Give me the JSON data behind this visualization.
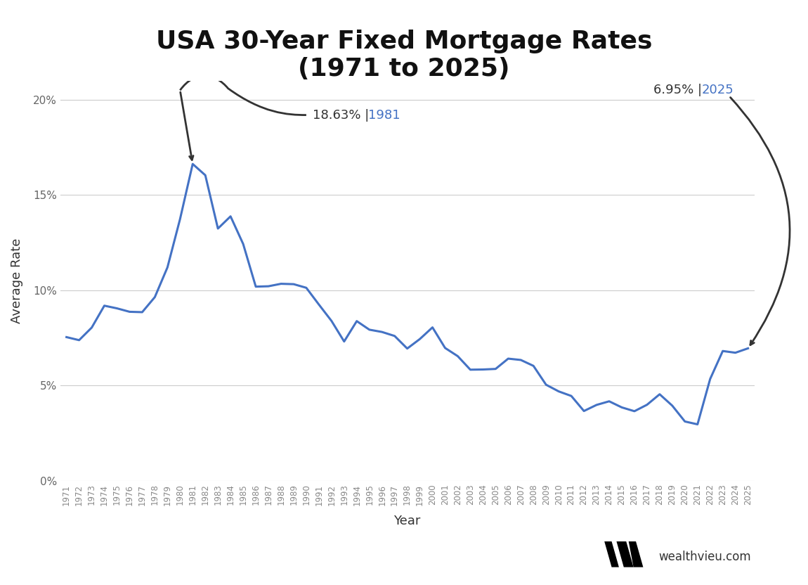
{
  "title": "USA 30-Year Fixed Mortgage Rates\n(1971 to 2025)",
  "xlabel": "Year",
  "ylabel": "Average Rate",
  "line_color": "#4472C4",
  "background_color": "#ffffff",
  "grid_color": "#cccccc",
  "years": [
    1971,
    1972,
    1973,
    1974,
    1975,
    1976,
    1977,
    1978,
    1979,
    1980,
    1981,
    1982,
    1983,
    1984,
    1985,
    1986,
    1987,
    1988,
    1989,
    1990,
    1991,
    1992,
    1993,
    1994,
    1995,
    1996,
    1997,
    1998,
    1999,
    2000,
    2001,
    2002,
    2003,
    2004,
    2005,
    2006,
    2007,
    2008,
    2009,
    2010,
    2011,
    2012,
    2013,
    2014,
    2015,
    2016,
    2017,
    2018,
    2019,
    2020,
    2021,
    2022,
    2023,
    2024,
    2025
  ],
  "rates": [
    7.54,
    7.38,
    8.04,
    9.19,
    9.05,
    8.87,
    8.85,
    9.64,
    11.2,
    13.74,
    16.63,
    16.04,
    13.24,
    13.88,
    12.43,
    10.19,
    10.21,
    10.34,
    10.32,
    10.13,
    9.25,
    8.39,
    7.31,
    8.38,
    7.93,
    7.81,
    7.6,
    6.94,
    7.44,
    8.05,
    6.97,
    6.54,
    5.83,
    5.84,
    5.87,
    6.41,
    6.34,
    6.03,
    5.04,
    4.69,
    4.45,
    3.66,
    3.98,
    4.17,
    3.85,
    3.65,
    3.99,
    4.54,
    3.94,
    3.11,
    2.96,
    5.34,
    6.81,
    6.72,
    6.95
  ],
  "ylim": [
    0,
    21
  ],
  "yticks": [
    0,
    5,
    10,
    15,
    20
  ],
  "ytick_labels": [
    "0%",
    "5%",
    "10%",
    "15%",
    "20%"
  ],
  "peak_year": 1981,
  "peak_rate": 16.63,
  "current_year": 2025,
  "current_rate": 6.95,
  "year_label_color": "#4472C4",
  "arrow_color": "#333333",
  "title_fontsize": 26,
  "axis_label_fontsize": 13,
  "tick_fontsize": 11,
  "annotation_fontsize": 13,
  "line_width": 2.2
}
